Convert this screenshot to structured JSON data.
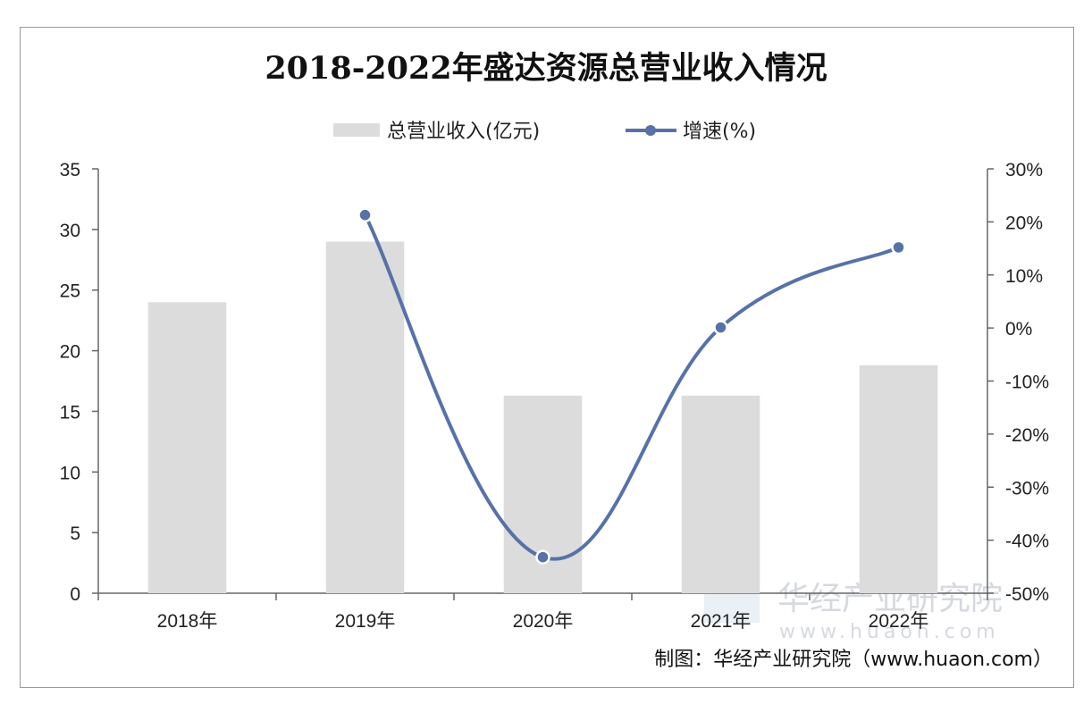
{
  "chart_data": {
    "type": "bar+line",
    "title": "2018-2022年盛达资源总营业收入情况",
    "categories": [
      "2018年",
      "2019年",
      "2020年",
      "2021年",
      "2022年"
    ],
    "series": [
      {
        "name": "总营业收入(亿元)",
        "type": "bar",
        "axis": "left",
        "values": [
          24.0,
          29.0,
          16.3,
          16.3,
          18.8
        ]
      },
      {
        "name": "增速(%)",
        "type": "line",
        "axis": "right",
        "values": [
          null,
          21.3,
          -43.2,
          0.1,
          15.2
        ]
      }
    ],
    "y_left": {
      "min": 0,
      "max": 35,
      "step": 5,
      "ticks": [
        "0",
        "5",
        "10",
        "15",
        "20",
        "25",
        "30",
        "35"
      ]
    },
    "y_right": {
      "min": -50,
      "max": 30,
      "step": 10,
      "ticks": [
        "-50%",
        "-40%",
        "-30%",
        "-20%",
        "-10%",
        "0%",
        "10%",
        "20%",
        "30%"
      ]
    },
    "grid": false,
    "legend_position": "top-center",
    "colors": {
      "bar": "#dcdcdc",
      "line": "#5672a8",
      "axis": "#666666"
    }
  },
  "legend": {
    "bar_label": "总营业收入(亿元)",
    "line_label": "增速(%)"
  },
  "source": "制图：华经产业研究院（www.huaon.com）",
  "watermark": {
    "name": "华经产业研究院",
    "url": "www.huaon.com"
  }
}
